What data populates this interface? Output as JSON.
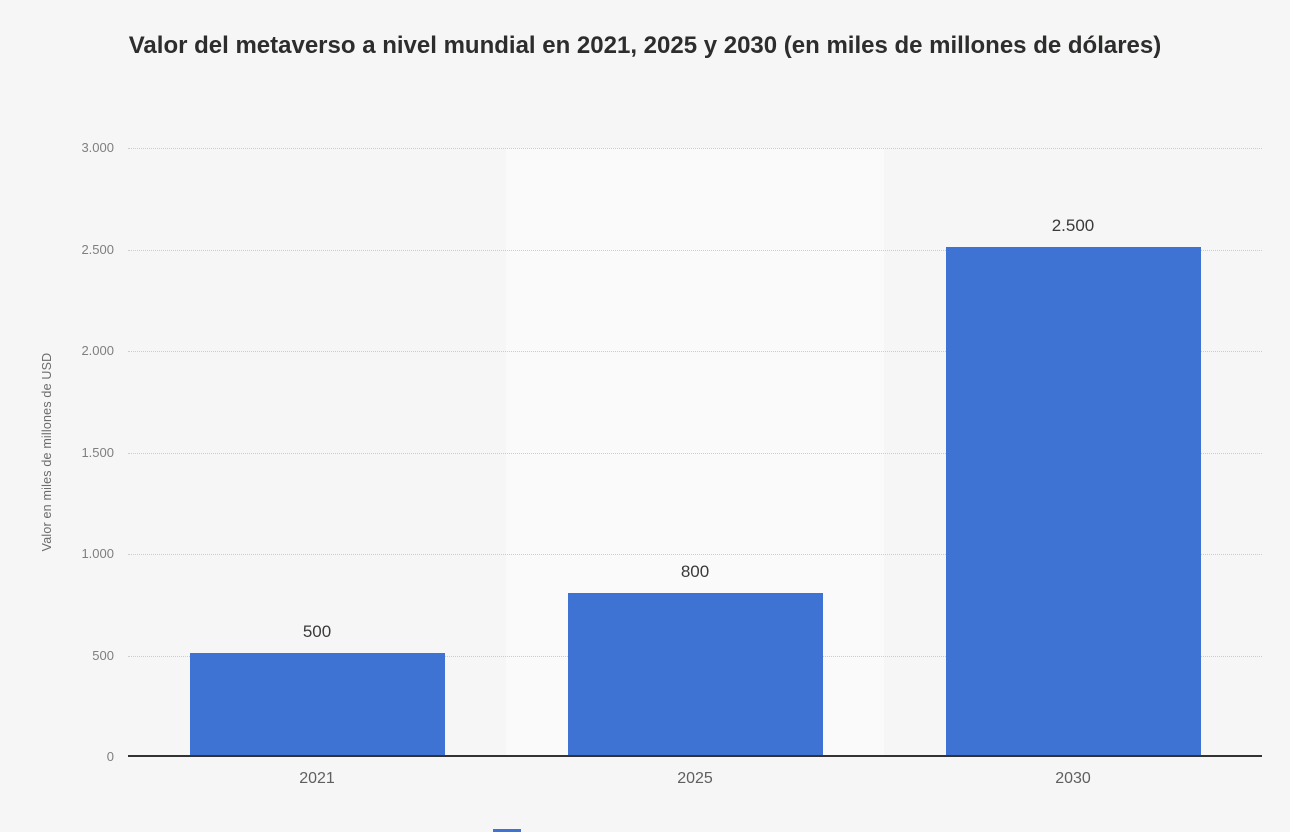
{
  "chart_data": {
    "type": "bar",
    "title": "Valor del metaverso a nivel mundial en 2021, 2025 y 2030 (en miles de millones de dólares)",
    "xlabel": "",
    "ylabel": "Valor en miles de millones de USD",
    "categories": [
      "2021",
      "2025",
      "2030"
    ],
    "values": [
      500,
      800,
      2500
    ],
    "value_labels": [
      "500",
      "800",
      "2.500"
    ],
    "ylim": [
      0,
      3000
    ],
    "ytick_step": 500,
    "ytick_labels": [
      "0",
      "500",
      "1.000",
      "1.500",
      "2.000",
      "2.500",
      "3.000"
    ],
    "grid": "horizontal-dotted",
    "legend": "none",
    "colors": {
      "bar": "#3E73D4",
      "background": "#f5f6f5",
      "highlight_band": "#fafafa",
      "axis_line": "#333333",
      "gridline": "#cccccc"
    }
  }
}
